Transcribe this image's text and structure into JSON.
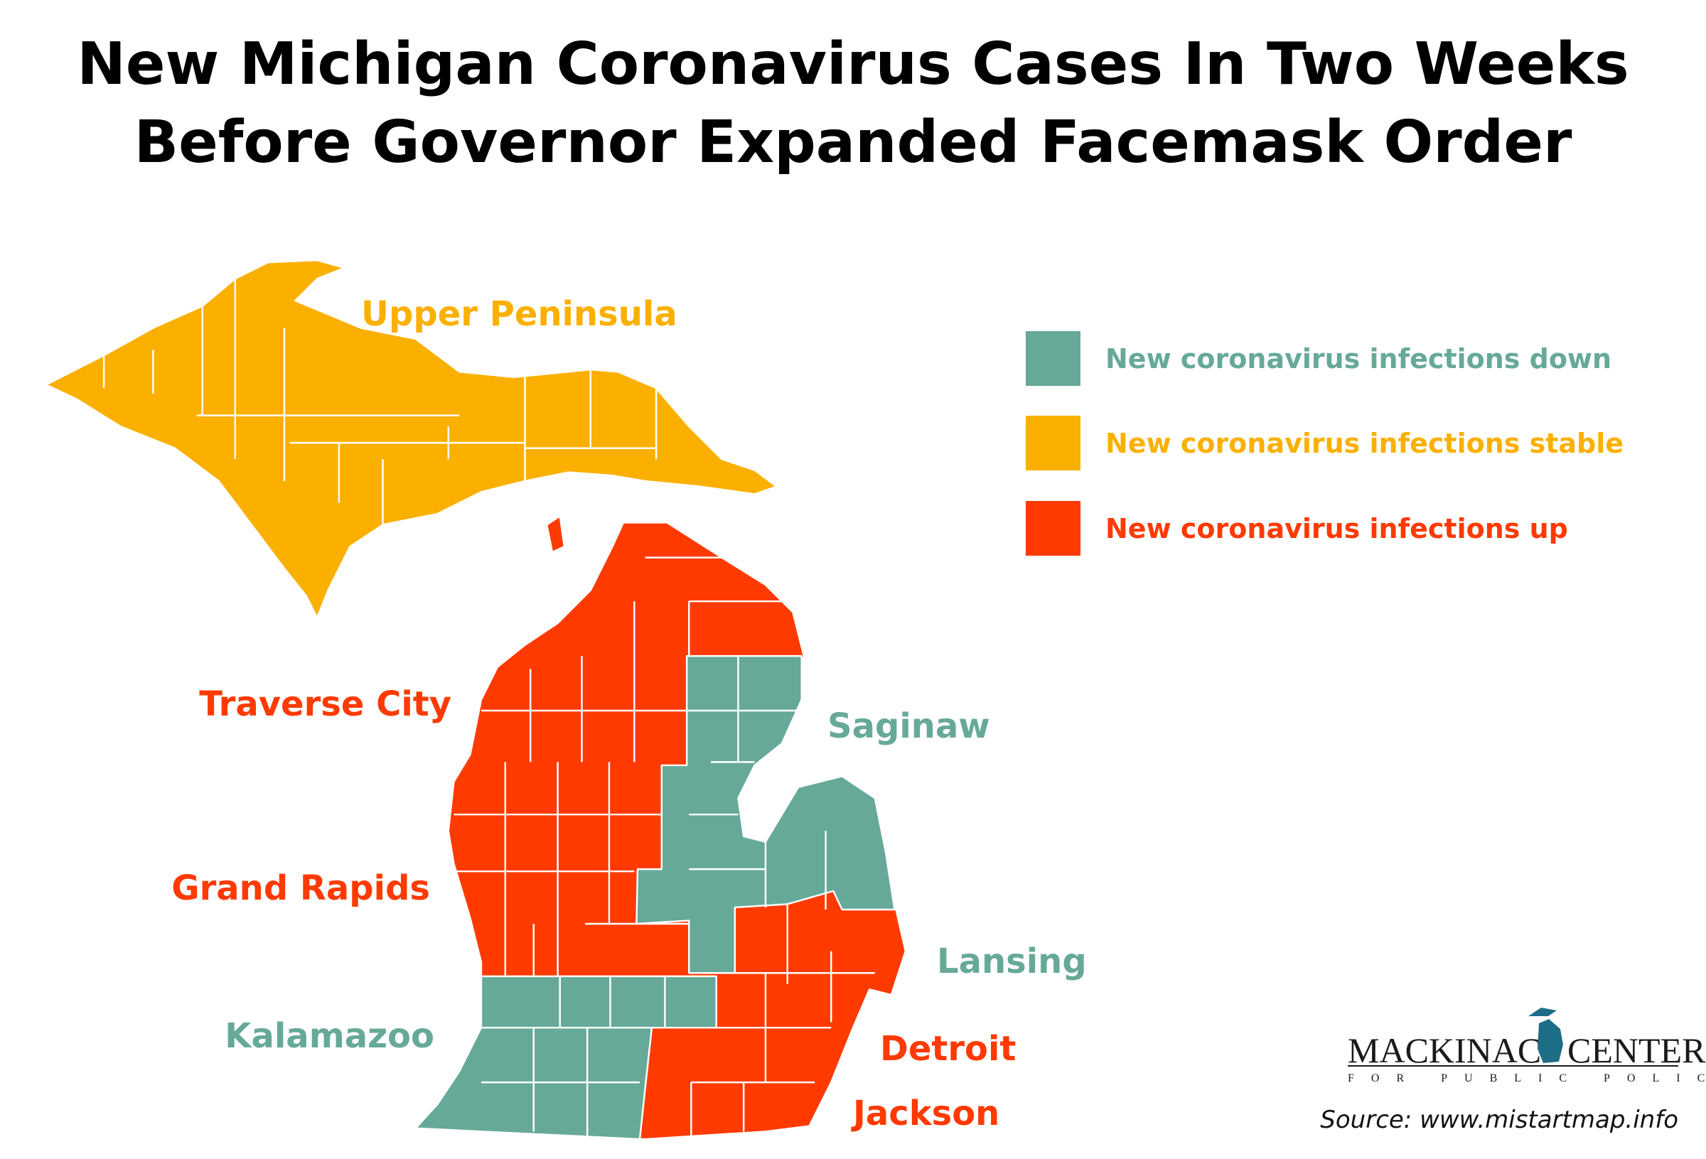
{
  "title": [
    "New Michigan Coronavirus Cases In Two Weeks",
    "Before Governor Expanded Facemask Order"
  ],
  "legend": [
    {
      "label": "New coronavirus infections down",
      "color": "#66a999"
    },
    {
      "label": "New coronavirus infections stable",
      "color": "#fbb000"
    },
    {
      "label": "New coronavirus infections up",
      "color": "#ff3a00"
    }
  ],
  "map_labels": [
    {
      "label": "Upper Peninsula",
      "color": "#fbb000"
    },
    {
      "label": "Traverse City",
      "color": "#ff3a00"
    },
    {
      "label": "Saginaw",
      "color": "#66a999"
    },
    {
      "label": "Grand Rapids",
      "color": "#ff3a00"
    },
    {
      "label": "Lansing",
      "color": "#66a999"
    },
    {
      "label": "Kalamazoo",
      "color": "#66a999"
    },
    {
      "label": "Detroit",
      "color": "#ff3a00"
    },
    {
      "label": "Jackson",
      "color": "#ff3a00"
    }
  ],
  "logo": {
    "name_left": "MACKINAC",
    "name_right": "CENTER",
    "tagline": "FOR PUBLIC POLICY"
  },
  "source": "Source: www.mistartmap.info"
}
